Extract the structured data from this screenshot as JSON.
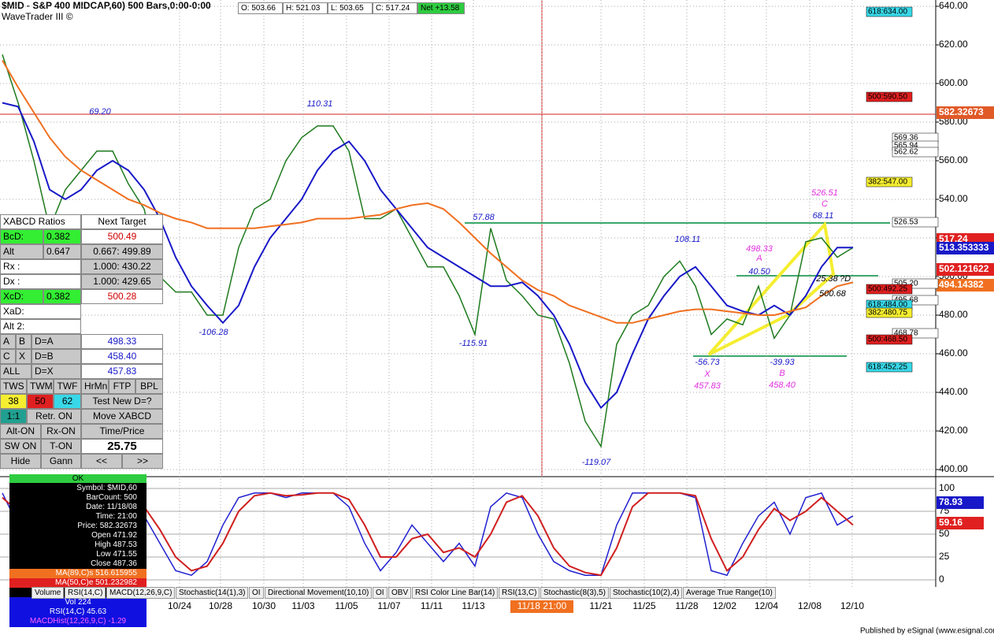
{
  "header": {
    "title": "$MID - S&P 400 MIDCAP,60) 500 Bars,0:00-0:00",
    "subtitle": "WaveTrader III ©",
    "ohlc": [
      "O: 503.66",
      "H: 521.03",
      "L: 503.65",
      "C: 517.24"
    ],
    "net": "Net +13.58"
  },
  "chart_data": {
    "type": "line",
    "ylim": [
      400,
      640
    ],
    "yticks": [
      {
        "value": 640,
        "label": "640.00"
      },
      {
        "value": 620,
        "label": "620.00"
      },
      {
        "value": 600,
        "label": "600.00"
      },
      {
        "value": 580,
        "label": "580.00"
      },
      {
        "value": 560,
        "label": "560.00"
      },
      {
        "value": 540,
        "label": "540.00"
      },
      {
        "value": 520,
        "label": "520.00"
      },
      {
        "value": 500,
        "label": "500.00"
      },
      {
        "value": 480,
        "label": "480.00"
      },
      {
        "value": 460,
        "label": "460.00"
      },
      {
        "value": 440,
        "label": "440.00"
      },
      {
        "value": 420,
        "label": "420.00"
      },
      {
        "value": 400,
        "label": "400.00"
      }
    ],
    "grid": true,
    "series": [
      {
        "color": "#1e7a1e",
        "values": [
          615,
          590,
          560,
          525,
          545,
          555,
          565,
          565,
          548,
          535,
          500,
          492,
          492,
          480,
          480,
          515,
          535,
          540,
          560,
          572,
          578,
          578,
          565,
          530,
          530,
          535,
          520,
          505,
          505,
          490,
          470,
          525,
          498,
          490,
          480,
          478,
          455,
          425,
          412,
          465,
          480,
          485,
          500,
          508,
          495,
          470,
          478,
          475,
          495,
          468,
          480,
          518,
          520,
          510,
          515
        ]
      },
      {
        "color": "#1818c8",
        "values": [
          590,
          588,
          570,
          545,
          540,
          545,
          555,
          560,
          555,
          545,
          530,
          510,
          495,
          485,
          476,
          485,
          505,
          520,
          530,
          540,
          555,
          565,
          570,
          560,
          545,
          535,
          525,
          515,
          510,
          505,
          500,
          495,
          495,
          497,
          490,
          480,
          465,
          445,
          432,
          440,
          460,
          478,
          490,
          500,
          505,
          495,
          485,
          482,
          480,
          485,
          480,
          490,
          505,
          515,
          515
        ]
      },
      {
        "color": "#f07020",
        "values": [
          612,
          598,
          585,
          572,
          562,
          555,
          550,
          545,
          540,
          537,
          533,
          530,
          528,
          525,
          525,
          525,
          525,
          526,
          527,
          528,
          530,
          530,
          530,
          531,
          532,
          535,
          537,
          538,
          535,
          528,
          520,
          512,
          505,
          498,
          493,
          490,
          485,
          482,
          479,
          476,
          476,
          478,
          480,
          482,
          483,
          483,
          482,
          481,
          480,
          480,
          482,
          484,
          490,
          495,
          497
        ]
      }
    ],
    "date_labels": [
      "10/24",
      "10/28",
      "10/30",
      "11/03",
      "11/05",
      "11/07",
      "11/11",
      "11/13",
      "11/18 21:00",
      "11/21",
      "11/25",
      "11/28",
      "12/02",
      "12/04",
      "12/08",
      "12/10"
    ],
    "price_labels": [
      "582.32673",
      "517.24",
      "513.353333",
      "502.121622",
      "494.14382"
    ],
    "annotations": [
      "618:634.00",
      "500:590.50",
      "569.36",
      "565.94",
      "562.62",
      "382:547.00",
      "526.53",
      "505.20",
      "500:492.25",
      "495.68",
      "618:484.00",
      "382:480.75",
      "468.78",
      "500:468.50",
      "618:452.25",
      "69.20",
      "110.31",
      "-106.28",
      "57.88",
      "-115.91",
      "108.11",
      "-119.07",
      "498.33",
      "A",
      "40.50",
      "526.51",
      "C",
      "68.11",
      "-56.73",
      "X",
      "457.83",
      "-39.93",
      "B",
      "458.40",
      "25.38",
      "?D",
      "500.68"
    ]
  },
  "stochastic": {
    "ylim": [
      0,
      100
    ],
    "yticks": [
      100,
      75,
      50,
      25,
      0
    ],
    "series": [
      {
        "color": "#2020d0",
        "values": [
          95,
          60,
          20,
          5,
          30,
          70,
          90,
          95,
          90,
          70,
          40,
          10,
          5,
          20,
          60,
          90,
          95,
          95,
          90,
          95,
          95,
          95,
          80,
          40,
          10,
          30,
          60,
          40,
          20,
          40,
          15,
          80,
          95,
          90,
          50,
          20,
          10,
          5,
          5,
          60,
          95,
          95,
          95,
          95,
          90,
          10,
          5,
          40,
          70,
          85,
          50,
          90,
          95,
          60,
          70
        ]
      },
      {
        "color": "#d02020",
        "values": [
          90,
          75,
          40,
          15,
          20,
          50,
          80,
          92,
          92,
          80,
          55,
          25,
          10,
          15,
          40,
          75,
          92,
          95,
          92,
          93,
          95,
          95,
          88,
          60,
          25,
          25,
          45,
          50,
          30,
          35,
          25,
          50,
          85,
          92,
          70,
          35,
          15,
          8,
          5,
          35,
          80,
          95,
          95,
          95,
          92,
          45,
          10,
          25,
          55,
          78,
          65,
          75,
          90,
          75,
          60
        ]
      }
    ],
    "right_labels": [
      "78.93",
      "59.16"
    ]
  },
  "left_panel": {
    "rows": [
      [
        "XABCD Ratios",
        "Next Target"
      ],
      [
        "BcD:",
        "0.382",
        "500.49"
      ],
      [
        "Alt",
        "0.647",
        "0.667: 499.89"
      ],
      [
        "Rx :",
        "1.000: 430.22"
      ],
      [
        "Dx :",
        "1.000: 429.65"
      ],
      [
        "XcD:",
        "0.382",
        "500.28"
      ],
      [
        "XaD:"
      ],
      [
        "Alt 2:"
      ],
      [
        "A",
        "B",
        "D=A",
        "498.33"
      ],
      [
        "C",
        "X",
        "D=B",
        "458.40"
      ],
      [
        "ALL",
        "D=X",
        "457.83"
      ],
      [
        "TWS",
        "TWM",
        "TWF",
        "HrMn",
        "FTP",
        "BPL"
      ],
      [
        "38",
        "50",
        "62",
        "Test New D=?"
      ],
      [
        "1:1",
        "Retr. ON",
        "Move XABCD"
      ],
      [
        "Alt-ON",
        "Rx-ON",
        "Time/Price"
      ],
      [
        "SW ON",
        "T-ON",
        "25.75"
      ],
      [
        "Hide",
        "Gann",
        "<<",
        ">>"
      ]
    ]
  },
  "data_window": {
    "status": "OK",
    "lines": [
      "Symbol: $MID,60",
      "BarCount: 500",
      "Date: 11/18/08",
      "Time: 21:00",
      "Price: 582.32673",
      "Open 471.92",
      "High 487.53",
      "Low 471.55",
      "Close 487.36",
      "MA(89,C)s 516.615955",
      "MA(50,C)e 501.232982"
    ],
    "indicators": [
      "Vol 224",
      "RSI(14,C) 45.63",
      "MACDHist(12,26,9,C) -1.29"
    ]
  },
  "tabs": [
    "Volume",
    "RSI(14,C)",
    "MACD(12,26,9,C)",
    "Stochastic(14(1),3)",
    "OI",
    "Directional Movement(10,10)",
    "OI",
    "OBV",
    "RSI Color Line Bar(14)",
    "RSI(13,C)",
    "Stochastic(8(3),5)",
    "Stochastic(10(2),4)",
    "Average True Range(10)"
  ],
  "footer": "Published by eSignal (www.esignal.com)"
}
